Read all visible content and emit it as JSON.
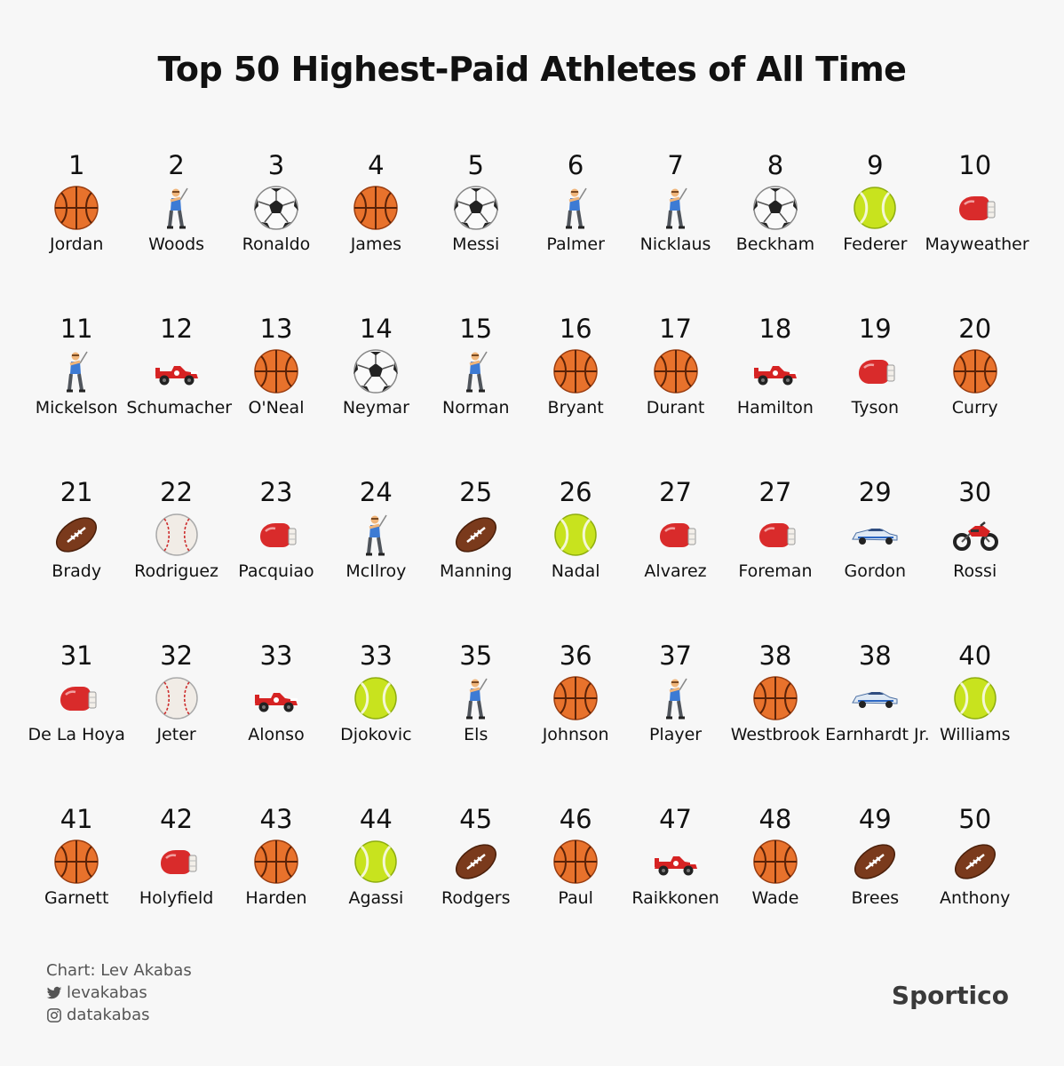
{
  "chart_data": {
    "type": "table",
    "title": "Top 50 Highest-Paid Athletes of All Time",
    "entries": [
      {
        "rank": "1",
        "name": "Jordan",
        "sport": "basketball"
      },
      {
        "rank": "2",
        "name": "Woods",
        "sport": "golf"
      },
      {
        "rank": "3",
        "name": "Ronaldo",
        "sport": "soccer"
      },
      {
        "rank": "4",
        "name": "James",
        "sport": "basketball"
      },
      {
        "rank": "5",
        "name": "Messi",
        "sport": "soccer"
      },
      {
        "rank": "6",
        "name": "Palmer",
        "sport": "golf"
      },
      {
        "rank": "7",
        "name": "Nicklaus",
        "sport": "golf"
      },
      {
        "rank": "8",
        "name": "Beckham",
        "sport": "soccer"
      },
      {
        "rank": "9",
        "name": "Federer",
        "sport": "tennis"
      },
      {
        "rank": "10",
        "name": "Mayweather",
        "sport": "boxing"
      },
      {
        "rank": "11",
        "name": "Mickelson",
        "sport": "golf"
      },
      {
        "rank": "12",
        "name": "Schumacher",
        "sport": "racing-f1"
      },
      {
        "rank": "13",
        "name": "O'Neal",
        "sport": "basketball"
      },
      {
        "rank": "14",
        "name": "Neymar",
        "sport": "soccer"
      },
      {
        "rank": "15",
        "name": "Norman",
        "sport": "golf"
      },
      {
        "rank": "16",
        "name": "Bryant",
        "sport": "basketball"
      },
      {
        "rank": "17",
        "name": "Durant",
        "sport": "basketball"
      },
      {
        "rank": "18",
        "name": "Hamilton",
        "sport": "racing-f1"
      },
      {
        "rank": "19",
        "name": "Tyson",
        "sport": "boxing"
      },
      {
        "rank": "20",
        "name": "Curry",
        "sport": "basketball"
      },
      {
        "rank": "21",
        "name": "Brady",
        "sport": "football"
      },
      {
        "rank": "22",
        "name": "Rodriguez",
        "sport": "baseball"
      },
      {
        "rank": "23",
        "name": "Pacquiao",
        "sport": "boxing"
      },
      {
        "rank": "24",
        "name": "McIlroy",
        "sport": "golf"
      },
      {
        "rank": "25",
        "name": "Manning",
        "sport": "football"
      },
      {
        "rank": "26",
        "name": "Nadal",
        "sport": "tennis"
      },
      {
        "rank": "27",
        "name": "Alvarez",
        "sport": "boxing"
      },
      {
        "rank": "27",
        "name": "Foreman",
        "sport": "boxing"
      },
      {
        "rank": "29",
        "name": "Gordon",
        "sport": "racing-stock"
      },
      {
        "rank": "30",
        "name": "Rossi",
        "sport": "motorcycle"
      },
      {
        "rank": "31",
        "name": "De La Hoya",
        "sport": "boxing"
      },
      {
        "rank": "32",
        "name": "Jeter",
        "sport": "baseball"
      },
      {
        "rank": "33",
        "name": "Alonso",
        "sport": "racing-f1"
      },
      {
        "rank": "33",
        "name": "Djokovic",
        "sport": "tennis"
      },
      {
        "rank": "35",
        "name": "Els",
        "sport": "golf"
      },
      {
        "rank": "36",
        "name": "Johnson",
        "sport": "basketball"
      },
      {
        "rank": "37",
        "name": "Player",
        "sport": "golf"
      },
      {
        "rank": "38",
        "name": "Westbrook",
        "sport": "basketball"
      },
      {
        "rank": "38",
        "name": "Earnhardt Jr.",
        "sport": "racing-stock"
      },
      {
        "rank": "40",
        "name": "Williams",
        "sport": "tennis"
      },
      {
        "rank": "41",
        "name": "Garnett",
        "sport": "basketball"
      },
      {
        "rank": "42",
        "name": "Holyfield",
        "sport": "boxing"
      },
      {
        "rank": "43",
        "name": "Harden",
        "sport": "basketball"
      },
      {
        "rank": "44",
        "name": "Agassi",
        "sport": "tennis"
      },
      {
        "rank": "45",
        "name": "Rodgers",
        "sport": "football"
      },
      {
        "rank": "46",
        "name": "Paul",
        "sport": "basketball"
      },
      {
        "rank": "47",
        "name": "Raikkonen",
        "sport": "racing-f1"
      },
      {
        "rank": "48",
        "name": "Wade",
        "sport": "basketball"
      },
      {
        "rank": "49",
        "name": "Brees",
        "sport": "football"
      },
      {
        "rank": "50",
        "name": "Anthony",
        "sport": "football"
      }
    ]
  },
  "credits": {
    "chart": "Chart: Lev Akabas",
    "twitter": "levakabas",
    "instagram": "datakabas"
  },
  "brand": "Sportico",
  "icons": {
    "twitter": "twitter-icon",
    "instagram": "instagram-icon"
  }
}
